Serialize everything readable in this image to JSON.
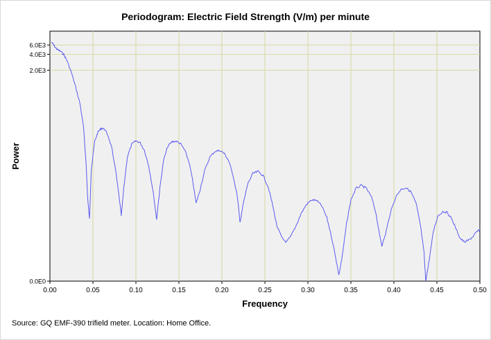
{
  "chart_data": {
    "type": "line",
    "title": "Periodogram: Electric Field Strength (V/m) per minute",
    "xlabel": "Frequency",
    "ylabel": "Power",
    "xlim": [
      0.0,
      0.5
    ],
    "x_ticks": [
      "0.00",
      "0.05",
      "0.10",
      "0.15",
      "0.20",
      "0.25",
      "0.30",
      "0.35",
      "0.40",
      "0.45",
      "0.50"
    ],
    "y_ticks": [
      "0.0E0",
      "2.0E3",
      "4.0E3",
      "6.0E3"
    ],
    "y_scale": "log",
    "grid": true,
    "legend": "none",
    "series": [
      {
        "color": "#5a5af0",
        "points": [
          [
            0.002,
            6800.0
          ],
          [
            0.005,
            5800.0
          ],
          [
            0.008,
            5000.0
          ],
          [
            0.012,
            4600.0
          ],
          [
            0.016,
            4000.0
          ],
          [
            0.02,
            3000.0
          ],
          [
            0.025,
            1800.0
          ],
          [
            0.03,
            950
          ],
          [
            0.035,
            460
          ],
          [
            0.039,
            170
          ],
          [
            0.042,
            35
          ],
          [
            0.044,
            7
          ],
          [
            0.046,
            3
          ],
          [
            0.048,
            25
          ],
          [
            0.052,
            90
          ],
          [
            0.056,
            135
          ],
          [
            0.06,
            160
          ],
          [
            0.064,
            150
          ],
          [
            0.068,
            110
          ],
          [
            0.072,
            65
          ],
          [
            0.076,
            28
          ],
          [
            0.08,
            9
          ],
          [
            0.083,
            3.5
          ],
          [
            0.086,
            12
          ],
          [
            0.09,
            45
          ],
          [
            0.095,
            78
          ],
          [
            0.1,
            92
          ],
          [
            0.105,
            84
          ],
          [
            0.11,
            60
          ],
          [
            0.115,
            30
          ],
          [
            0.12,
            10
          ],
          [
            0.124,
            3.0
          ],
          [
            0.128,
            12
          ],
          [
            0.132,
            38
          ],
          [
            0.137,
            72
          ],
          [
            0.142,
            88
          ],
          [
            0.147,
            90
          ],
          [
            0.152,
            80
          ],
          [
            0.157,
            60
          ],
          [
            0.162,
            35
          ],
          [
            0.166,
            16
          ],
          [
            0.17,
            6.0
          ],
          [
            0.174,
            10
          ],
          [
            0.18,
            25
          ],
          [
            0.186,
            45
          ],
          [
            0.192,
            58
          ],
          [
            0.198,
            60
          ],
          [
            0.203,
            52
          ],
          [
            0.208,
            38
          ],
          [
            0.213,
            20
          ],
          [
            0.218,
            8
          ],
          [
            0.221,
            2.6
          ],
          [
            0.225,
            6
          ],
          [
            0.23,
            14
          ],
          [
            0.236,
            22
          ],
          [
            0.242,
            24
          ],
          [
            0.248,
            20
          ],
          [
            0.254,
            12
          ],
          [
            0.259,
            5.5
          ],
          [
            0.264,
            2.2
          ],
          [
            0.27,
            1.3
          ],
          [
            0.275,
            1.1
          ],
          [
            0.28,
            1.4
          ],
          [
            0.286,
            2.2
          ],
          [
            0.292,
            3.8
          ],
          [
            0.298,
            5.6
          ],
          [
            0.304,
            6.9
          ],
          [
            0.31,
            6.8
          ],
          [
            0.316,
            5.4
          ],
          [
            0.322,
            3.2
          ],
          [
            0.327,
            1.5
          ],
          [
            0.332,
            0.6
          ],
          [
            0.336,
            0.26
          ],
          [
            0.34,
            0.6
          ],
          [
            0.345,
            2.5
          ],
          [
            0.35,
            7.0
          ],
          [
            0.356,
            11.5
          ],
          [
            0.362,
            13.0
          ],
          [
            0.368,
            11.5
          ],
          [
            0.374,
            7.8
          ],
          [
            0.379,
            4.0
          ],
          [
            0.383,
            1.6
          ],
          [
            0.386,
            0.95
          ],
          [
            0.39,
            1.5
          ],
          [
            0.396,
            4.0
          ],
          [
            0.402,
            7.8
          ],
          [
            0.408,
            11.0
          ],
          [
            0.414,
            11.8
          ],
          [
            0.42,
            9.8
          ],
          [
            0.426,
            5.8
          ],
          [
            0.431,
            2.2
          ],
          [
            0.435,
            0.7
          ],
          [
            0.437,
            0.2
          ],
          [
            0.441,
            0.5
          ],
          [
            0.446,
            1.8
          ],
          [
            0.451,
            3.4
          ],
          [
            0.457,
            4.2
          ],
          [
            0.462,
            4.0
          ],
          [
            0.467,
            3.1
          ],
          [
            0.472,
            2.0
          ],
          [
            0.477,
            1.3
          ],
          [
            0.482,
            1.1
          ],
          [
            0.487,
            1.2
          ],
          [
            0.492,
            1.4
          ],
          [
            0.496,
            1.7
          ],
          [
            0.5,
            1.9
          ]
        ]
      }
    ]
  },
  "footer": {
    "source": "Source: GQ EMF-390 trifield meter. Location: Home Office."
  }
}
